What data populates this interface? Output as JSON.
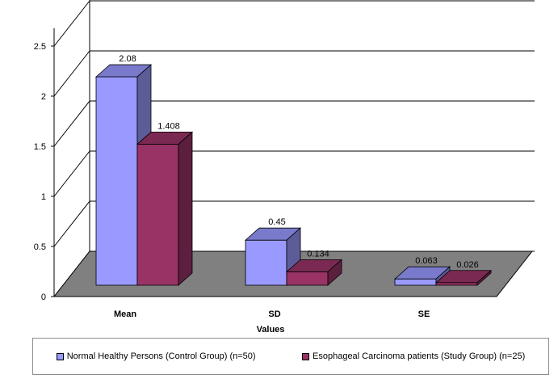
{
  "chart_data": {
    "type": "bar",
    "title": "",
    "xlabel": "Values",
    "ylabel": "",
    "categories": [
      "Mean",
      "SD",
      "SE"
    ],
    "series": [
      {
        "name": "Normal Healthy Persons  (Control Group) (n=50)",
        "values": [
          2.08,
          0.45,
          0.063
        ],
        "labels": [
          "2.08",
          "0.45",
          "0.063"
        ],
        "color": "#9999ff"
      },
      {
        "name": "Esophageal Carcinoma patients (Study Group) (n=25)",
        "values": [
          1.408,
          0.134,
          0.026
        ],
        "labels": [
          "1.408",
          "0.134",
          "0.026"
        ],
        "color": "#993366"
      }
    ],
    "ylim": [
      0,
      3
    ],
    "yticks": [
      "0",
      "0.5",
      "1",
      "1.5",
      "2",
      "2.5"
    ],
    "grid": true,
    "legend_position": "bottom",
    "floor_color": "#808080"
  }
}
